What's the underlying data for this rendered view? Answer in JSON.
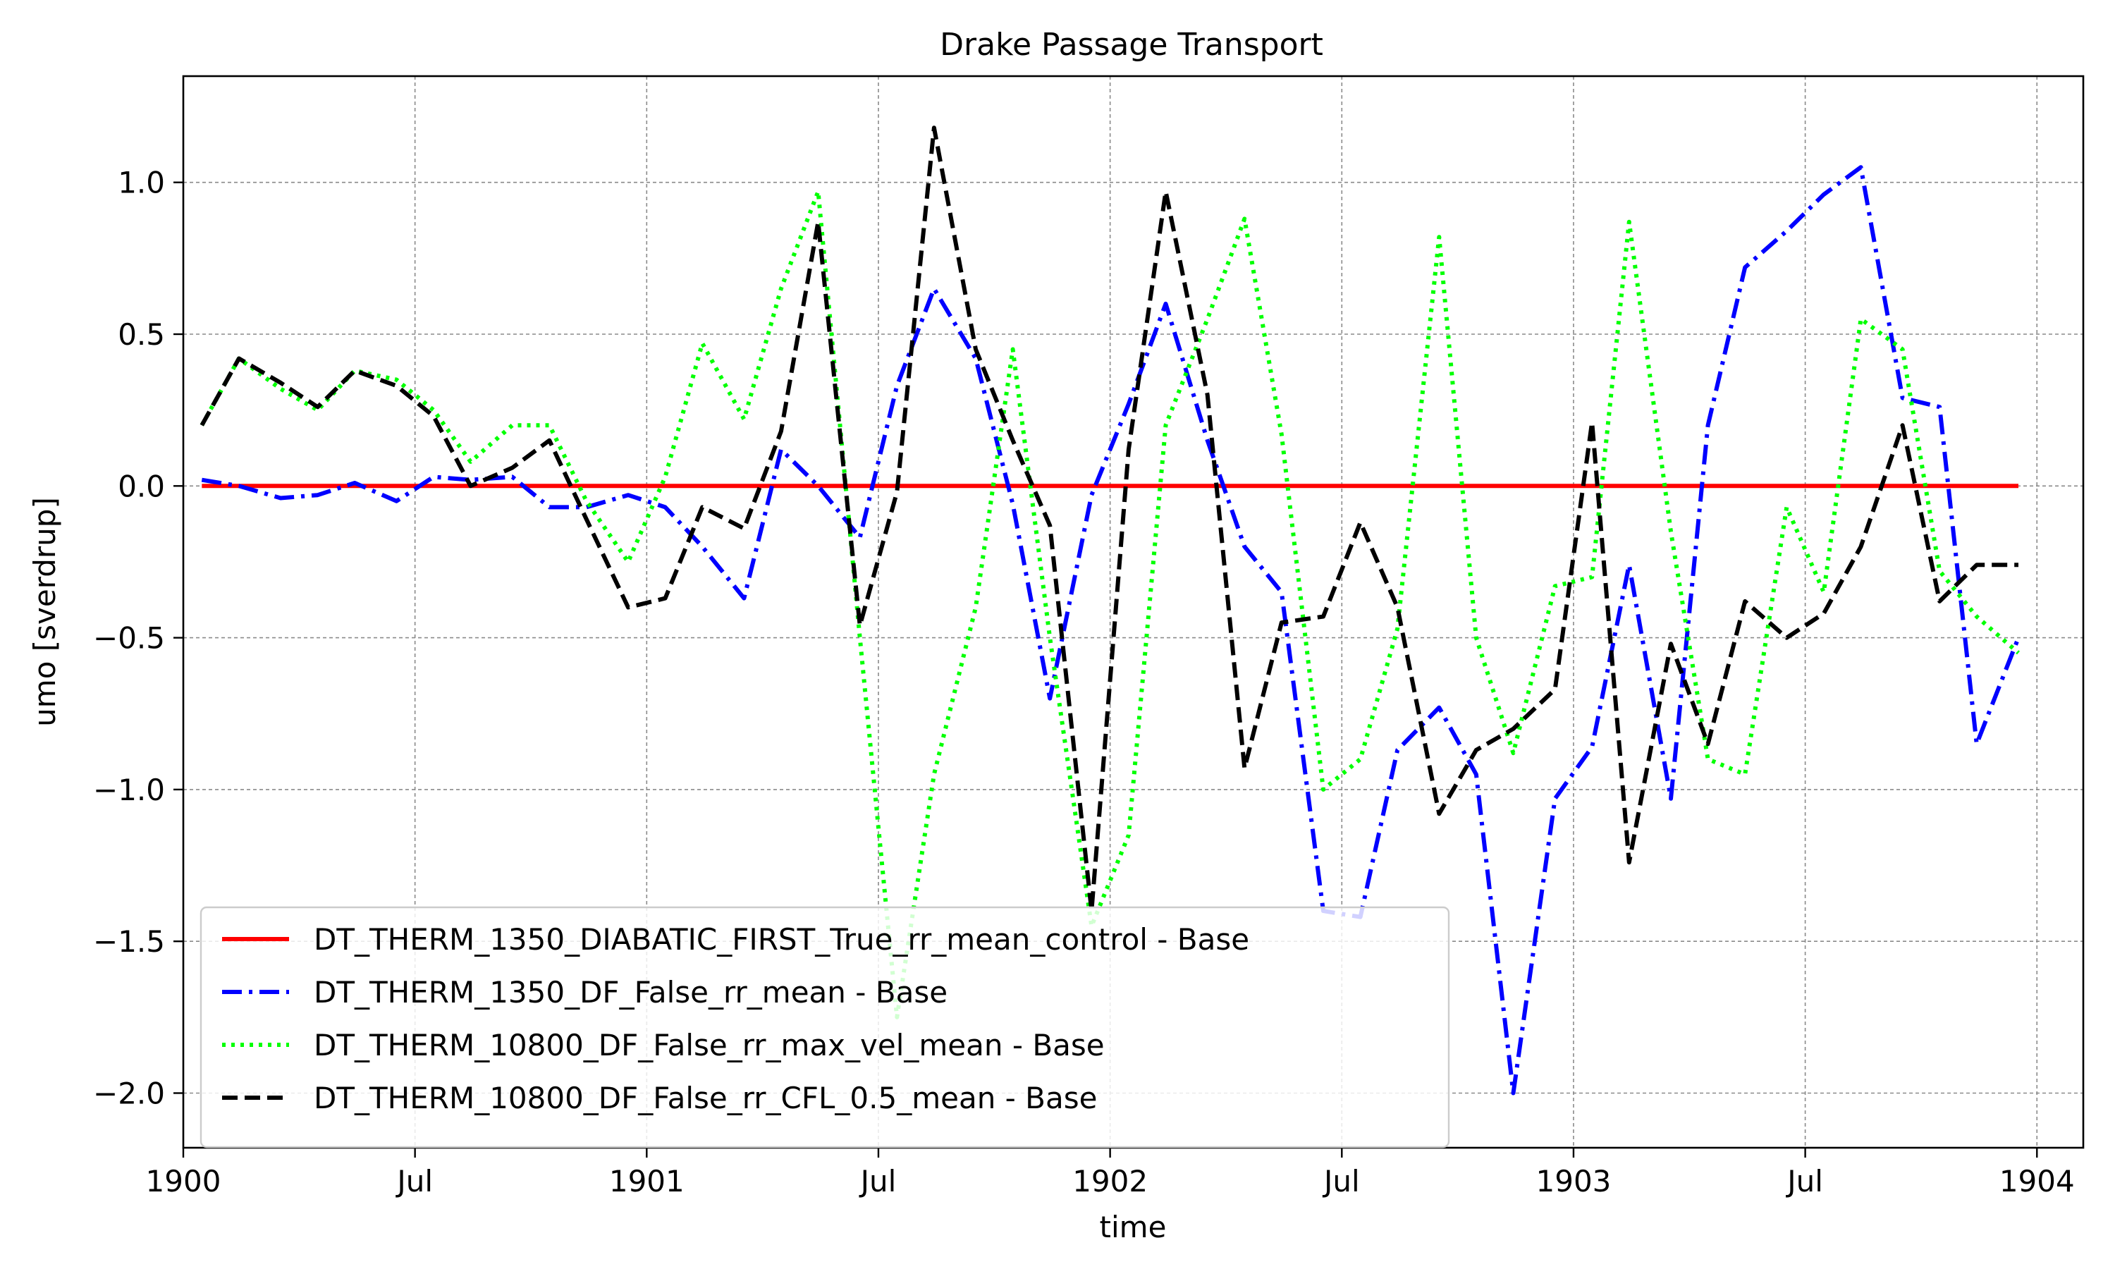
{
  "chart_data": {
    "type": "line",
    "title": "Drake Passage Transport",
    "xlabel": "time",
    "ylabel": "umo [sverdrup]",
    "xlim": [
      1900.0,
      1904.1
    ],
    "ylim": [
      -2.18,
      1.35
    ],
    "x_ticks": [
      {
        "value": 1900.0,
        "label": "1900"
      },
      {
        "value": 1900.5,
        "label": "Jul"
      },
      {
        "value": 1901.0,
        "label": "1901"
      },
      {
        "value": 1901.5,
        "label": "Jul"
      },
      {
        "value": 1902.0,
        "label": "1902"
      },
      {
        "value": 1902.5,
        "label": "Jul"
      },
      {
        "value": 1903.0,
        "label": "1903"
      },
      {
        "value": 1903.5,
        "label": "Jul"
      },
      {
        "value": 1904.0,
        "label": "1904"
      }
    ],
    "y_ticks": [
      {
        "value": 1.0,
        "label": "1.0"
      },
      {
        "value": 0.5,
        "label": "0.5"
      },
      {
        "value": 0.0,
        "label": "0.0"
      },
      {
        "value": -0.5,
        "label": "−0.5"
      },
      {
        "value": -1.0,
        "label": "−1.0"
      },
      {
        "value": -1.5,
        "label": "−1.5"
      },
      {
        "value": -2.0,
        "label": "−2.0"
      }
    ],
    "grid": true,
    "legend_position": "lower-left",
    "x": [
      1900.04,
      1900.12,
      1900.21,
      1900.29,
      1900.37,
      1900.46,
      1900.54,
      1900.62,
      1900.71,
      1900.79,
      1900.87,
      1900.96,
      1901.04,
      1901.12,
      1901.21,
      1901.29,
      1901.37,
      1901.46,
      1901.54,
      1901.62,
      1901.71,
      1901.79,
      1901.87,
      1901.96,
      1902.04,
      1902.12,
      1902.21,
      1902.29,
      1902.37,
      1902.46,
      1902.54,
      1902.62,
      1902.71,
      1902.79,
      1902.87,
      1902.96,
      1903.04,
      1903.12,
      1903.21,
      1903.29,
      1903.37,
      1903.46,
      1903.54,
      1903.62,
      1903.71,
      1903.79,
      1903.87,
      1903.96
    ],
    "series": [
      {
        "name": "DT_THERM_1350_DIABATIC_FIRST_True_rr_mean_control - Base",
        "color": "#ff0000",
        "dash": "solid",
        "values": [
          0,
          0,
          0,
          0,
          0,
          0,
          0,
          0,
          0,
          0,
          0,
          0,
          0,
          0,
          0,
          0,
          0,
          0,
          0,
          0,
          0,
          0,
          0,
          0,
          0,
          0,
          0,
          0,
          0,
          0,
          0,
          0,
          0,
          0,
          0,
          0,
          0,
          0,
          0,
          0,
          0,
          0,
          0,
          0,
          0,
          0,
          0,
          0
        ]
      },
      {
        "name": "DT_THERM_1350_DF_False_rr_mean - Base",
        "color": "#0000ff",
        "dash": "dashdot",
        "values": [
          0.02,
          0.0,
          -0.04,
          -0.03,
          0.01,
          -0.05,
          0.03,
          0.02,
          0.03,
          -0.07,
          -0.07,
          -0.03,
          -0.07,
          -0.2,
          -0.37,
          0.12,
          0.0,
          -0.17,
          0.33,
          0.65,
          0.42,
          -0.06,
          -0.7,
          -0.03,
          0.27,
          0.6,
          0.15,
          -0.2,
          -0.35,
          -1.4,
          -1.42,
          -0.87,
          -0.73,
          -0.95,
          -2.0,
          -1.03,
          -0.86,
          -0.26,
          -1.03,
          0.2,
          0.72,
          0.84,
          0.96,
          1.05,
          0.29,
          0.26,
          -0.85,
          -0.5
        ]
      },
      {
        "name": "DT_THERM_10800_DF_False_rr_max_vel_mean - Base",
        "color": "#00ff00",
        "dash": "dotted",
        "values": [
          0.2,
          0.42,
          0.32,
          0.25,
          0.38,
          0.35,
          0.25,
          0.08,
          0.2,
          0.2,
          -0.05,
          -0.25,
          0.03,
          0.47,
          0.22,
          0.65,
          0.97,
          -0.5,
          -1.75,
          -0.95,
          -0.4,
          0.45,
          -0.5,
          -1.45,
          -1.15,
          0.2,
          0.55,
          0.88,
          0.17,
          -1.0,
          -0.9,
          -0.47,
          0.82,
          -0.5,
          -0.88,
          -0.33,
          -0.3,
          0.87,
          -0.15,
          -0.9,
          -0.95,
          -0.07,
          -0.35,
          0.55,
          0.45,
          -0.28,
          -0.43,
          -0.55
        ]
      },
      {
        "name": "DT_THERM_10800_DF_False_rr_CFL_0.5_mean - Base",
        "color": "#000000",
        "dash": "dashed",
        "values": [
          0.2,
          0.42,
          0.34,
          0.26,
          0.38,
          0.33,
          0.23,
          0.0,
          0.06,
          0.15,
          -0.11,
          -0.4,
          -0.37,
          -0.07,
          -0.14,
          0.18,
          0.87,
          -0.46,
          -0.02,
          1.18,
          0.45,
          0.15,
          -0.13,
          -1.4,
          0.12,
          0.97,
          0.3,
          -0.93,
          -0.45,
          -0.43,
          -0.12,
          -0.4,
          -1.08,
          -0.87,
          -0.8,
          -0.67,
          0.21,
          -1.24,
          -0.52,
          -0.85,
          -0.38,
          -0.5,
          -0.42,
          -0.2,
          0.2,
          -0.38,
          -0.26,
          -0.26
        ]
      }
    ]
  }
}
